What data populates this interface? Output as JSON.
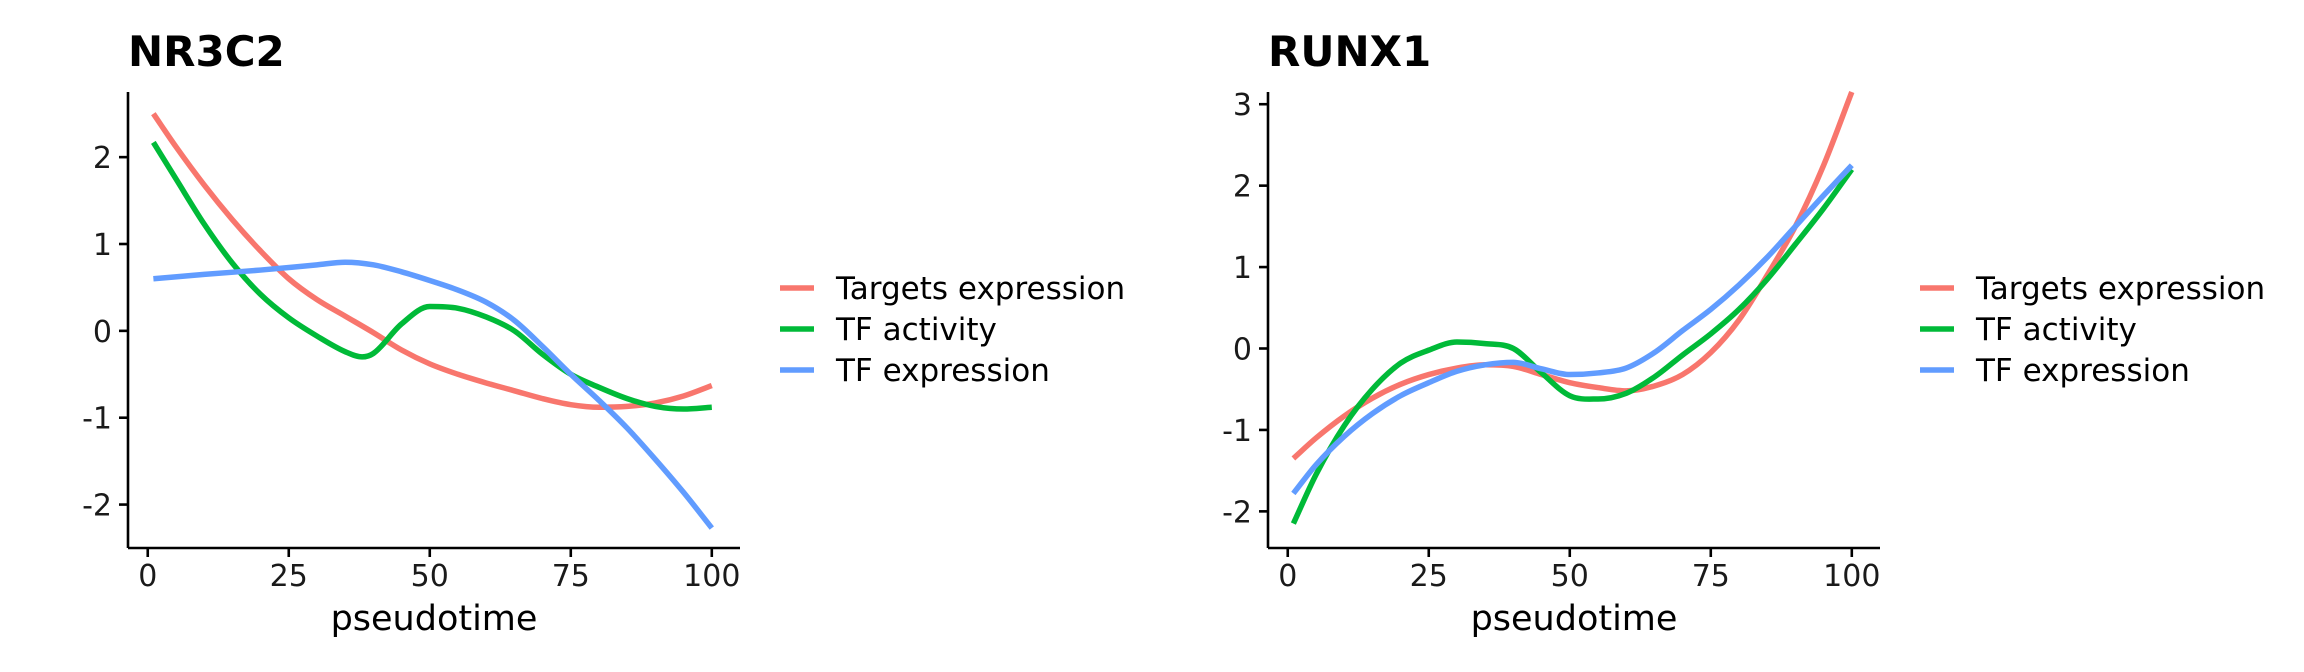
{
  "chart_data": [
    {
      "type": "line",
      "title": "NR3C2",
      "xlabel": "pseudotime",
      "ylabel": "",
      "xlim": [
        -3.5,
        105
      ],
      "ylim": [
        -2.5,
        2.75
      ],
      "xticks": [
        0,
        25,
        50,
        75,
        100
      ],
      "xtick_labels": [
        "0",
        "25",
        "50",
        "75",
        "100"
      ],
      "yticks": [
        2,
        1,
        0,
        -1,
        -2
      ],
      "ytick_labels": [
        "2",
        "1",
        "0",
        "-1",
        "-2"
      ],
      "grid": false,
      "legend_position": "right",
      "series": [
        {
          "name": "Targets expression",
          "color": "#F8766D",
          "x": [
            1,
            5,
            10,
            15,
            20,
            25,
            30,
            35,
            40,
            45,
            50,
            55,
            60,
            65,
            70,
            75,
            80,
            85,
            90,
            95,
            100
          ],
          "values": [
            2.5,
            2.12,
            1.68,
            1.28,
            0.92,
            0.6,
            0.36,
            0.17,
            -0.02,
            -0.22,
            -0.38,
            -0.5,
            -0.6,
            -0.69,
            -0.78,
            -0.85,
            -0.88,
            -0.87,
            -0.83,
            -0.75,
            -0.63
          ]
        },
        {
          "name": "TF activity",
          "color": "#00BA38",
          "x": [
            1,
            5,
            10,
            15,
            20,
            25,
            30,
            35,
            38,
            40,
            45,
            50,
            55,
            60,
            65,
            70,
            75,
            80,
            85,
            90,
            95,
            100
          ],
          "values": [
            2.17,
            1.75,
            1.23,
            0.78,
            0.42,
            0.15,
            -0.06,
            -0.24,
            -0.3,
            -0.26,
            0.08,
            0.28,
            0.26,
            0.16,
            0.0,
            -0.27,
            -0.5,
            -0.65,
            -0.78,
            -0.87,
            -0.9,
            -0.88
          ]
        },
        {
          "name": "TF expression",
          "color": "#619CFF",
          "x": [
            1,
            10,
            20,
            30,
            35,
            40,
            45,
            50,
            55,
            60,
            65,
            70,
            75,
            80,
            85,
            90,
            95,
            100
          ],
          "values": [
            0.6,
            0.65,
            0.7,
            0.76,
            0.79,
            0.76,
            0.68,
            0.58,
            0.47,
            0.33,
            0.12,
            -0.18,
            -0.5,
            -0.8,
            -1.12,
            -1.48,
            -1.86,
            -2.27
          ]
        }
      ],
      "legend": [
        "Targets expression",
        "TF activity",
        "TF expression"
      ]
    },
    {
      "type": "line",
      "title": "RUNX1",
      "xlabel": "pseudotime",
      "ylabel": "",
      "xlim": [
        -3.5,
        105
      ],
      "ylim": [
        -2.45,
        3.15
      ],
      "xticks": [
        0,
        25,
        50,
        75,
        100
      ],
      "xtick_labels": [
        "0",
        "25",
        "50",
        "75",
        "100"
      ],
      "yticks": [
        3,
        2,
        1,
        0,
        -1,
        -2
      ],
      "ytick_labels": [
        "3",
        "2",
        "1",
        "0",
        "-1",
        "-2"
      ],
      "grid": false,
      "legend_position": "right",
      "series": [
        {
          "name": "Targets expression",
          "color": "#F8766D",
          "x": [
            1,
            5,
            10,
            15,
            20,
            25,
            30,
            35,
            40,
            45,
            50,
            55,
            60,
            65,
            70,
            75,
            80,
            85,
            90,
            95,
            100
          ],
          "values": [
            -1.35,
            -1.1,
            -0.83,
            -0.61,
            -0.44,
            -0.32,
            -0.24,
            -0.2,
            -0.22,
            -0.32,
            -0.42,
            -0.48,
            -0.52,
            -0.46,
            -0.32,
            -0.05,
            0.35,
            0.9,
            1.5,
            2.25,
            3.15
          ]
        },
        {
          "name": "TF activity",
          "color": "#00BA38",
          "x": [
            1,
            5,
            10,
            15,
            20,
            25,
            30,
            35,
            40,
            45,
            50,
            55,
            60,
            65,
            70,
            75,
            80,
            85,
            90,
            95,
            100
          ],
          "values": [
            -2.15,
            -1.55,
            -0.95,
            -0.5,
            -0.18,
            -0.02,
            0.08,
            0.06,
            0.0,
            -0.3,
            -0.58,
            -0.62,
            -0.55,
            -0.35,
            -0.08,
            0.18,
            0.48,
            0.85,
            1.28,
            1.72,
            2.2
          ]
        },
        {
          "name": "TF expression",
          "color": "#619CFF",
          "x": [
            1,
            5,
            10,
            15,
            20,
            25,
            30,
            35,
            40,
            45,
            50,
            55,
            60,
            65,
            70,
            75,
            80,
            85,
            90,
            95,
            100
          ],
          "values": [
            -1.78,
            -1.43,
            -1.08,
            -0.8,
            -0.58,
            -0.42,
            -0.28,
            -0.2,
            -0.17,
            -0.25,
            -0.32,
            -0.3,
            -0.24,
            -0.05,
            0.22,
            0.48,
            0.78,
            1.12,
            1.5,
            1.88,
            2.25
          ]
        }
      ],
      "legend": [
        "Targets expression",
        "TF activity",
        "TF expression"
      ]
    }
  ]
}
